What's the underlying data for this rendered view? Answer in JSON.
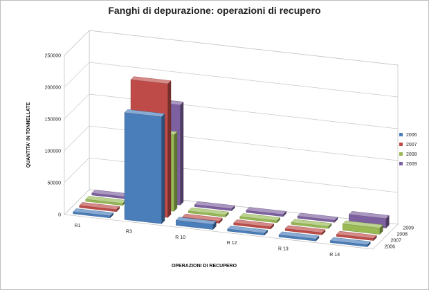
{
  "chart_data": {
    "type": "bar",
    "title": "Fanghi di depurazione: operazioni di recupero",
    "xlabel": "OPERAZIONI DI RECUPERO",
    "ylabel": "QUANTITA'  IN TONNELLATE",
    "zlabel": "",
    "categories": [
      "R1",
      "R3",
      "R 10",
      "R 12",
      "R 13",
      "R 14"
    ],
    "depth_labels": [
      "2006",
      "2007",
      "2008",
      "2009"
    ],
    "ylim": [
      0,
      250000
    ],
    "yticks": [
      "0",
      "50000",
      "100000",
      "150000",
      "200000",
      "250000"
    ],
    "series": [
      {
        "name": "2006",
        "color": "#4a7ebb",
        "values": [
          0,
          168000,
          8000,
          0,
          0,
          0
        ]
      },
      {
        "name": "2007",
        "color": "#be4b48",
        "values": [
          0,
          210000,
          0,
          0,
          0,
          0
        ]
      },
      {
        "name": "2008",
        "color": "#98b954",
        "values": [
          0,
          120000,
          0,
          0,
          0,
          10000
        ]
      },
      {
        "name": "2009",
        "color": "#7d60a0",
        "values": [
          0,
          157000,
          0,
          0,
          0,
          15000
        ]
      }
    ],
    "legend_position": "right",
    "grid": true
  }
}
